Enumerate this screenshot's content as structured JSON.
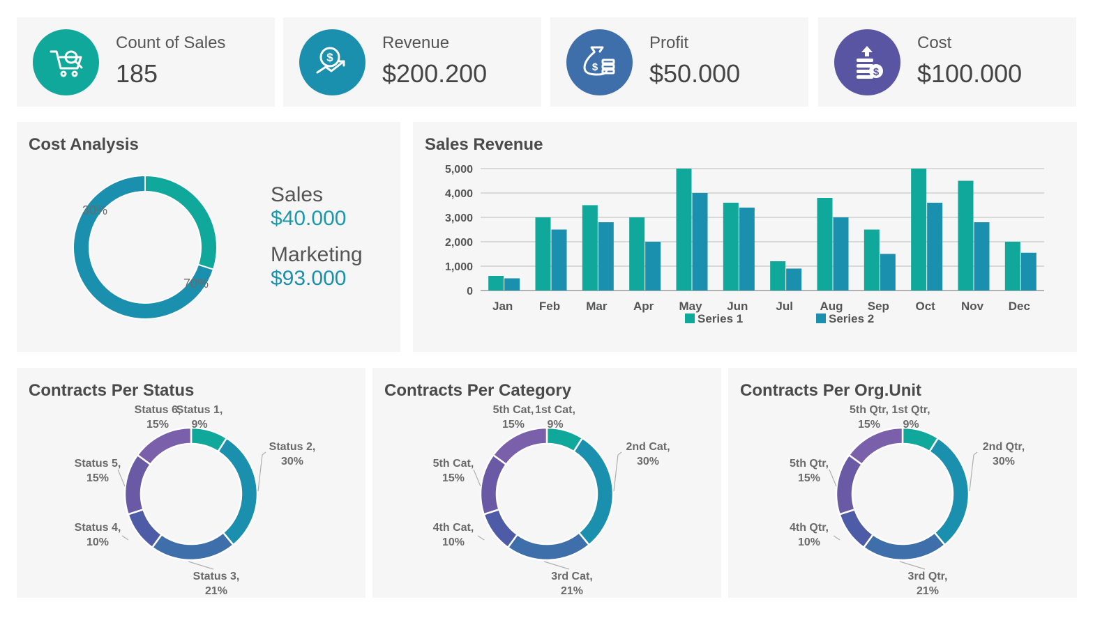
{
  "colors": {
    "teal": "#11a89c",
    "blue": "#1a8fae",
    "steel": "#3f6fab",
    "indigo": "#4e5ba6",
    "purple": "#6a5aa6",
    "violet": "#7a5fab",
    "grid": "#c8c8c8"
  },
  "kpis": [
    {
      "label": "Count of Sales",
      "value": "185",
      "icon": "shopping-cart-icon",
      "color": "#11a89c"
    },
    {
      "label": "Revenue",
      "value": "$200.200",
      "icon": "revenue-growth-icon",
      "color": "#1a8fae"
    },
    {
      "label": "Profit",
      "value": "$50.000",
      "icon": "money-bag-icon",
      "color": "#3f6fab"
    },
    {
      "label": "Cost",
      "value": "$100.000",
      "icon": "coin-stack-icon",
      "color": "#5a55a3"
    }
  ],
  "cost_analysis": {
    "title": "Cost Analysis",
    "sales_label": "Sales",
    "sales_value": "$40.000",
    "marketing_label": "Marketing",
    "marketing_value": "$93.000"
  },
  "sales_revenue": {
    "title": "Sales Revenue"
  },
  "status_panel": {
    "title": "Contracts Per Status"
  },
  "category_panel": {
    "title": "Contracts Per Category"
  },
  "org_panel": {
    "title": "Contracts Per Org.Unit"
  },
  "chart_data": [
    {
      "type": "pie",
      "donut": true,
      "categories": [
        "Sales",
        "Marketing"
      ],
      "values": [
        30,
        70
      ],
      "data_labels": [
        "30%",
        "70%"
      ],
      "colors": [
        "#11a89c",
        "#1a8fae"
      ]
    },
    {
      "type": "bar",
      "categories": [
        "Jan",
        "Feb",
        "Mar",
        "Apr",
        "May",
        "Jun",
        "Jul",
        "Aug",
        "Sep",
        "Oct",
        "Nov",
        "Dec"
      ],
      "series": [
        {
          "name": "Series 1",
          "values": [
            600,
            3000,
            3500,
            3000,
            5000,
            3600,
            1200,
            3800,
            2500,
            5000,
            4500,
            2000
          ],
          "color": "#11a89c"
        },
        {
          "name": "Series 2",
          "values": [
            500,
            2500,
            2800,
            2000,
            4000,
            3400,
            900,
            3000,
            1500,
            3600,
            2800,
            1550
          ],
          "color": "#1a8fae"
        }
      ],
      "yticks": [
        "0",
        "1,000",
        "2,000",
        "3,000",
        "4,000",
        "5,000"
      ],
      "ylim": [
        0,
        5000
      ],
      "grid": true,
      "legend": "bottom"
    },
    {
      "type": "pie",
      "donut": true,
      "categories": [
        "Status 1",
        "Status 2",
        "Status 3",
        "Status 4",
        "Status 5",
        "Status 6"
      ],
      "values": [
        9,
        30,
        21,
        10,
        15,
        15
      ],
      "label_lines": [
        [
          "Status 1,",
          "9%"
        ],
        [
          "Status 2,",
          "30%"
        ],
        [
          "Status 3,",
          "21%"
        ],
        [
          "Status 4,",
          "10%"
        ],
        [
          "Status 5,",
          "15%"
        ],
        [
          "Status 6,",
          "15%"
        ]
      ],
      "colors": [
        "#11a89c",
        "#1a8fae",
        "#3f6fab",
        "#4e5ba6",
        "#6a5aa6",
        "#7a5fab"
      ]
    },
    {
      "type": "pie",
      "donut": true,
      "categories": [
        "1st Cat",
        "2nd Cat",
        "3rd Cat",
        "4th Cat",
        "5th Cat",
        "5th Cat"
      ],
      "values": [
        9,
        30,
        21,
        10,
        15,
        15
      ],
      "label_lines": [
        [
          "1st Cat,",
          "9%"
        ],
        [
          "2nd Cat,",
          "30%"
        ],
        [
          "3rd Cat,",
          "21%"
        ],
        [
          "4th Cat,",
          "10%"
        ],
        [
          "5th Cat,",
          "15%"
        ],
        [
          "5th Cat,",
          "15%"
        ]
      ],
      "colors": [
        "#11a89c",
        "#1a8fae",
        "#3f6fab",
        "#4e5ba6",
        "#6a5aa6",
        "#7a5fab"
      ]
    },
    {
      "type": "pie",
      "donut": true,
      "categories": [
        "1st Qtr",
        "2nd Qtr",
        "3rd Qtr",
        "4th Qtr",
        "5th Qtr",
        "5th Qtr"
      ],
      "values": [
        9,
        30,
        21,
        10,
        15,
        15
      ],
      "label_lines": [
        [
          "1st Qtr,",
          "9%"
        ],
        [
          "2nd Qtr,",
          "30%"
        ],
        [
          "3rd Qtr,",
          "21%"
        ],
        [
          "4th Qtr,",
          "10%"
        ],
        [
          "5th Qtr,",
          "15%"
        ],
        [
          "5th Qtr,",
          "15%"
        ]
      ],
      "colors": [
        "#11a89c",
        "#1a8fae",
        "#3f6fab",
        "#4e5ba6",
        "#6a5aa6",
        "#7a5fab"
      ]
    }
  ]
}
